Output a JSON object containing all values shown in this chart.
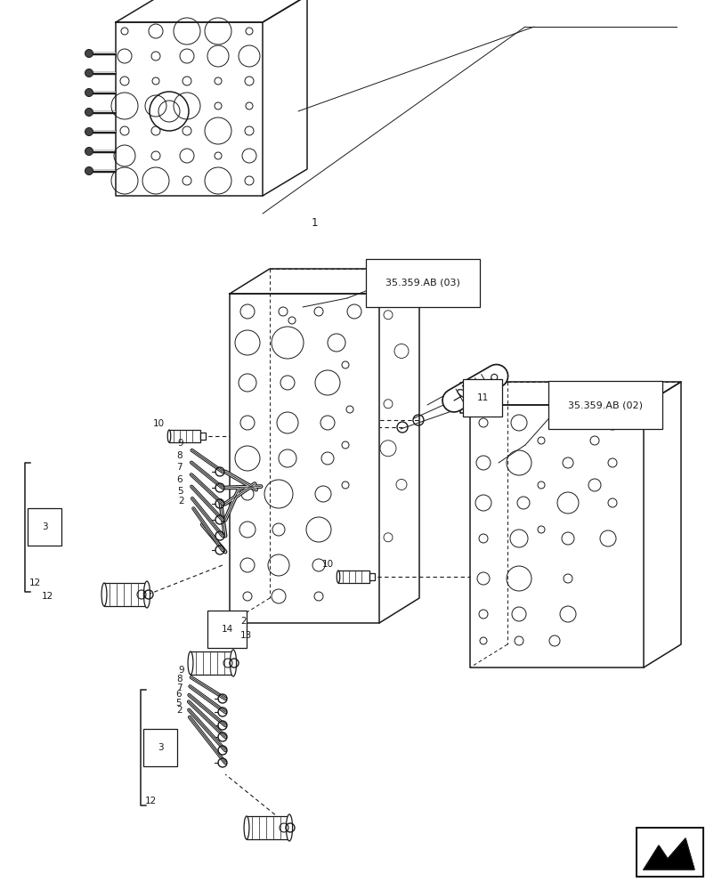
{
  "bg_color": "#ffffff",
  "line_color": "#1a1a1a",
  "figsize": [
    8.12,
    10.0
  ],
  "dpi": 100,
  "labels": {
    "ref_03": "35.359.AB (03)",
    "ref_02": "35.359.AB (02)"
  }
}
